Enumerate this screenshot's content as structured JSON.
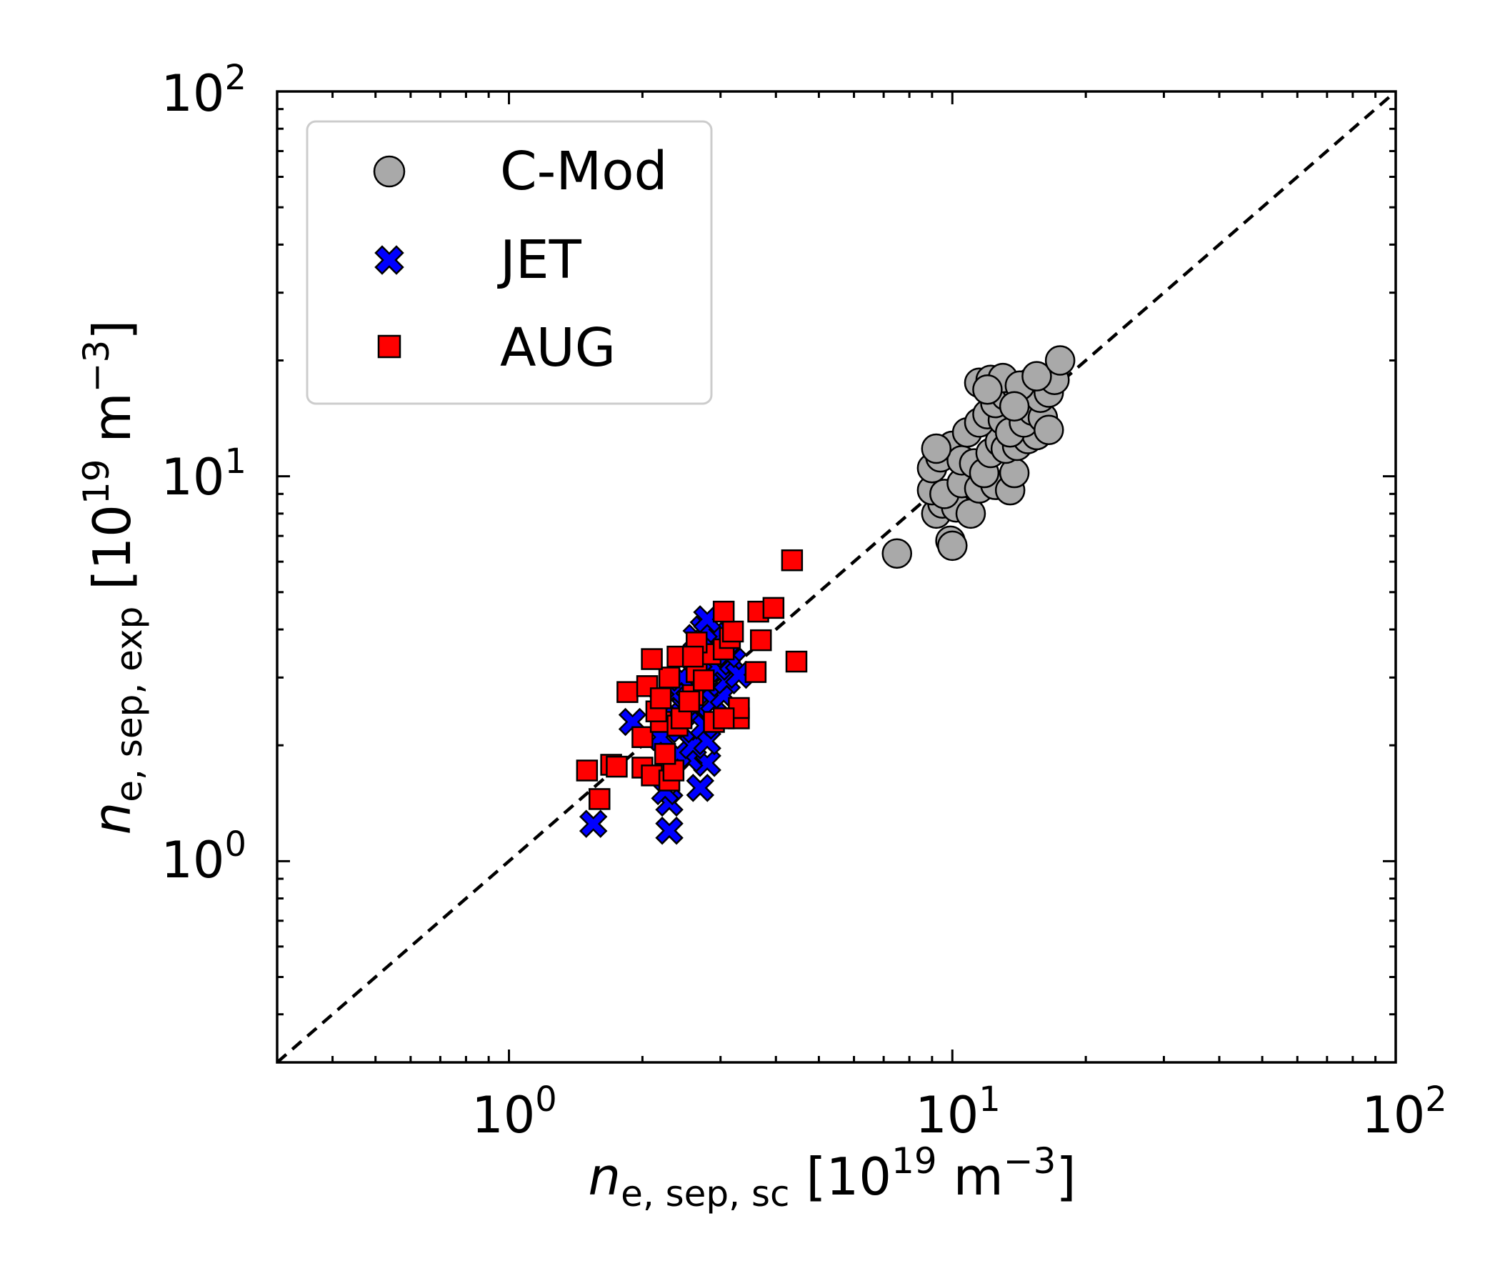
{
  "chart_data": {
    "type": "scatter",
    "title": "",
    "xlabel": {
      "var": "n",
      "sub": "e, sep, sc",
      "unit_open": " [10",
      "unit_exp": "19",
      "unit_mid": " m",
      "unit_exp2": "−3",
      "unit_close": "]"
    },
    "ylabel": {
      "var": "n",
      "sub": "e, sep, exp",
      "unit_open": " [10",
      "unit_exp": "19",
      "unit_mid": " m",
      "unit_exp2": "−3",
      "unit_close": "]"
    },
    "x_scale": "log",
    "y_scale": "log",
    "xlim": [
      0.3,
      100
    ],
    "ylim": [
      0.3,
      100
    ],
    "x_ticks": [
      {
        "value": 1,
        "base": "10",
        "exp": "0"
      },
      {
        "value": 10,
        "base": "10",
        "exp": "1"
      },
      {
        "value": 100,
        "base": "10",
        "exp": "2"
      }
    ],
    "y_ticks": [
      {
        "value": 1,
        "base": "10",
        "exp": "0"
      },
      {
        "value": 10,
        "base": "10",
        "exp": "1"
      },
      {
        "value": 100,
        "base": "10",
        "exp": "2"
      }
    ],
    "reference_line": {
      "style": "dashed",
      "color": "#000000",
      "relation": "y = x"
    },
    "grid": false,
    "legend_position": "top-left",
    "series": [
      {
        "name": "C-Mod",
        "marker": "circle",
        "color": "#a9a9a9",
        "points": [
          [
            7.5,
            6.3
          ],
          [
            9.9,
            6.8
          ],
          [
            10.0,
            6.6
          ],
          [
            9.2,
            8.0
          ],
          [
            9.5,
            8.5
          ],
          [
            10.2,
            8.3
          ],
          [
            11.0,
            8.0
          ],
          [
            9.0,
            9.2
          ],
          [
            9.6,
            9.0
          ],
          [
            10.5,
            9.6
          ],
          [
            11.5,
            9.3
          ],
          [
            12.5,
            9.5
          ],
          [
            13.5,
            9.2
          ],
          [
            13.8,
            10.2
          ],
          [
            9.0,
            10.5
          ],
          [
            9.4,
            11.2
          ],
          [
            10.0,
            12.0
          ],
          [
            10.5,
            11.0
          ],
          [
            11.2,
            10.8
          ],
          [
            11.8,
            10.2
          ],
          [
            12.2,
            11.5
          ],
          [
            12.8,
            12.3
          ],
          [
            13.2,
            11.8
          ],
          [
            14.0,
            12.0
          ],
          [
            14.8,
            12.5
          ],
          [
            15.5,
            12.8
          ],
          [
            9.2,
            11.8
          ],
          [
            10.8,
            13.0
          ],
          [
            11.5,
            13.8
          ],
          [
            12.0,
            14.5
          ],
          [
            13.0,
            14.0
          ],
          [
            13.5,
            13.0
          ],
          [
            14.5,
            13.8
          ],
          [
            15.2,
            14.8
          ],
          [
            16.0,
            14.2
          ],
          [
            16.5,
            13.2
          ],
          [
            12.5,
            15.5
          ],
          [
            13.2,
            16.2
          ],
          [
            14.0,
            17.0
          ],
          [
            14.5,
            16.5
          ],
          [
            15.0,
            17.5
          ],
          [
            15.8,
            16.0
          ],
          [
            16.5,
            16.5
          ],
          [
            17.0,
            17.8
          ],
          [
            11.5,
            17.5
          ],
          [
            12.2,
            17.8
          ],
          [
            13.0,
            18.0
          ],
          [
            14.2,
            17.2
          ],
          [
            15.5,
            18.2
          ],
          [
            17.5,
            20.0
          ],
          [
            12.0,
            16.8
          ],
          [
            13.8,
            15.2
          ]
        ]
      },
      {
        "name": "JET",
        "marker": "x",
        "color": "#0000ff",
        "points": [
          [
            1.55,
            1.25
          ],
          [
            2.3,
            1.2
          ],
          [
            2.3,
            1.42
          ],
          [
            2.25,
            1.52
          ],
          [
            2.7,
            1.55
          ],
          [
            2.8,
            1.8
          ],
          [
            2.55,
            1.85
          ],
          [
            2.4,
            1.9
          ],
          [
            2.6,
            2.0
          ],
          [
            2.8,
            2.05
          ],
          [
            2.2,
            2.1
          ],
          [
            2.45,
            2.2
          ],
          [
            2.75,
            2.25
          ],
          [
            1.9,
            2.3
          ],
          [
            2.3,
            2.4
          ],
          [
            2.5,
            2.5
          ],
          [
            2.65,
            2.55
          ],
          [
            2.9,
            2.6
          ],
          [
            3.05,
            2.7
          ],
          [
            2.35,
            2.75
          ],
          [
            2.55,
            2.85
          ],
          [
            2.8,
            2.9
          ],
          [
            3.1,
            2.95
          ],
          [
            2.45,
            3.0
          ],
          [
            2.7,
            3.1
          ],
          [
            2.95,
            3.2
          ],
          [
            3.2,
            3.3
          ],
          [
            2.6,
            3.4
          ],
          [
            2.85,
            3.5
          ],
          [
            3.0,
            3.6
          ],
          [
            2.65,
            3.8
          ],
          [
            2.9,
            3.85
          ],
          [
            2.75,
            4.0
          ],
          [
            2.8,
            4.25
          ],
          [
            2.2,
            2.6
          ],
          [
            2.4,
            2.35
          ],
          [
            3.3,
            3.05
          ],
          [
            3.1,
            3.45
          ]
        ]
      },
      {
        "name": "AUG",
        "marker": "square",
        "color": "#ff0000",
        "points": [
          [
            1.5,
            1.72
          ],
          [
            1.6,
            1.45
          ],
          [
            1.7,
            1.78
          ],
          [
            1.75,
            1.76
          ],
          [
            2.0,
            1.75
          ],
          [
            2.1,
            1.67
          ],
          [
            2.3,
            1.62
          ],
          [
            2.35,
            1.72
          ],
          [
            2.25,
            1.9
          ],
          [
            2.0,
            2.1
          ],
          [
            2.2,
            2.3
          ],
          [
            2.4,
            2.25
          ],
          [
            2.15,
            2.45
          ],
          [
            2.45,
            2.35
          ],
          [
            2.9,
            2.3
          ],
          [
            3.3,
            2.35
          ],
          [
            3.3,
            2.5
          ],
          [
            3.05,
            2.35
          ],
          [
            1.85,
            2.75
          ],
          [
            2.05,
            2.85
          ],
          [
            2.2,
            2.65
          ],
          [
            2.6,
            2.7
          ],
          [
            2.3,
            3.0
          ],
          [
            2.65,
            3.1
          ],
          [
            2.1,
            3.35
          ],
          [
            2.4,
            3.4
          ],
          [
            2.85,
            3.45
          ],
          [
            3.05,
            3.55
          ],
          [
            3.15,
            3.8
          ],
          [
            2.65,
            3.7
          ],
          [
            2.6,
            3.4
          ],
          [
            3.2,
            3.95
          ],
          [
            3.7,
            3.75
          ],
          [
            3.6,
            3.1
          ],
          [
            3.05,
            4.45
          ],
          [
            3.65,
            4.45
          ],
          [
            3.95,
            4.55
          ],
          [
            4.45,
            3.3
          ],
          [
            4.35,
            6.05
          ],
          [
            2.55,
            2.6
          ],
          [
            2.75,
            2.95
          ]
        ]
      }
    ]
  }
}
